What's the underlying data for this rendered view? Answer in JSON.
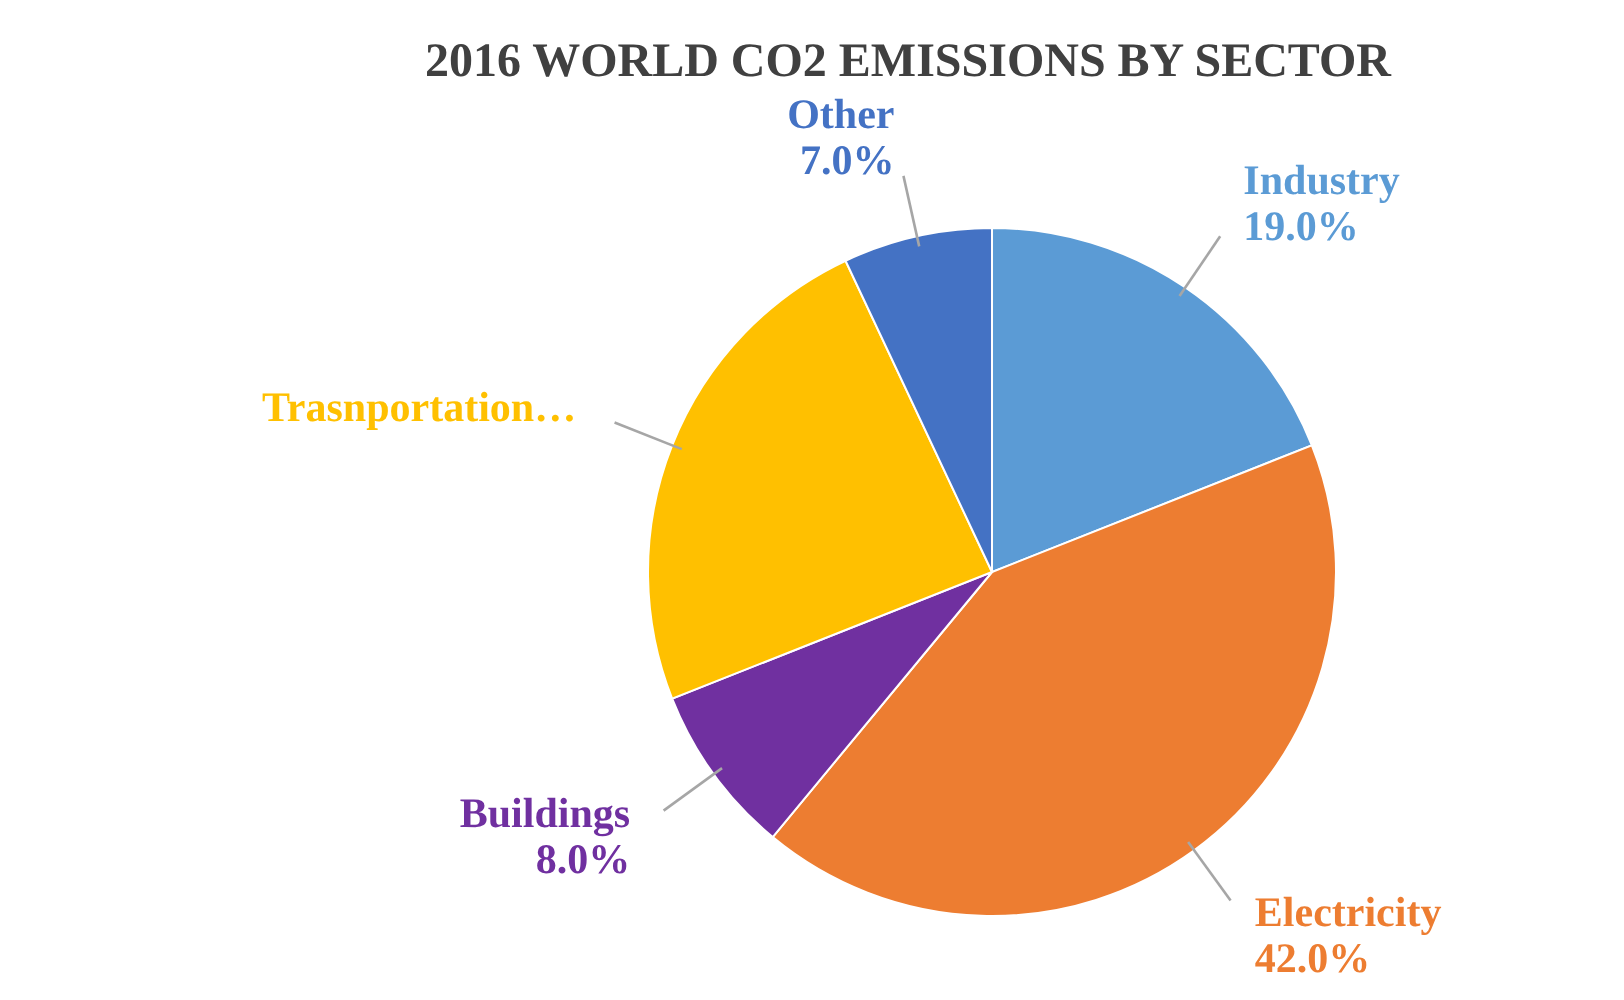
{
  "chart_data": {
    "type": "pie",
    "title": "2016 WORLD CO2 EMISSIONS BY SECTOR",
    "categories": [
      "Industry",
      "Electricity",
      "Buildings",
      "Trasnportation…",
      "Other"
    ],
    "values": [
      19,
      42,
      8,
      24,
      7
    ],
    "colors": [
      "#5b9bd5",
      "#ed7d31",
      "#7030a0",
      "#ffc000",
      "#4472c4"
    ],
    "value_labels": [
      "19.0%",
      "42.0%",
      "8.0%",
      null,
      "7.0%"
    ]
  }
}
